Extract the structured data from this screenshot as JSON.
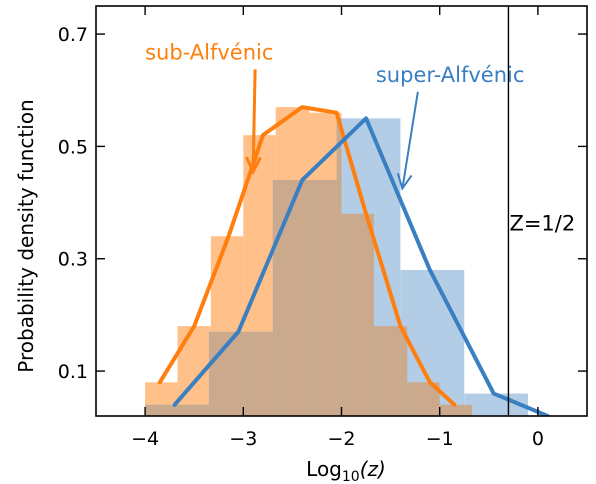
{
  "chart_data": {
    "type": "histogram",
    "xlabel": "Log",
    "xlabel_sub": "10",
    "xlabel_var": "(z)",
    "ylabel": "Probability density function",
    "xlim": [
      -4.5,
      0.5
    ],
    "ylim": [
      0.02,
      0.75
    ],
    "xticks": [
      -4,
      -3,
      -2,
      -1,
      0
    ],
    "xtick_labels": [
      "−4",
      "−3",
      "−2",
      "−1",
      "0"
    ],
    "yticks": [
      0.1,
      0.3,
      0.5,
      0.7
    ],
    "ytick_labels": [
      "0.1",
      "0.3",
      "0.5",
      "0.7"
    ],
    "grid": false,
    "series": [
      {
        "name": "sub-Alfvénic",
        "color": "#ff7f0e",
        "hist_color": "#ffc089",
        "bin_edges": [
          -4.0,
          -3.67,
          -3.33,
          -3.0,
          -2.67,
          -2.33,
          -2.0,
          -1.67,
          -1.33,
          -1.0,
          -0.67
        ],
        "hist_values": [
          0.08,
          0.18,
          0.34,
          0.52,
          0.57,
          0.56,
          0.38,
          0.18,
          0.08,
          0.04
        ],
        "line_x": [
          -3.85,
          -3.5,
          -3.15,
          -2.8,
          -2.4,
          -2.05,
          -1.75,
          -1.4,
          -1.1,
          -0.85
        ],
        "line_y": [
          0.08,
          0.18,
          0.34,
          0.52,
          0.57,
          0.56,
          0.38,
          0.18,
          0.08,
          0.04
        ]
      },
      {
        "name": "super-Alfvénic",
        "color": "#3a7fc1",
        "hist_color": "#b4cde6",
        "bin_edges": [
          -4.0,
          -3.35,
          -2.7,
          -2.05,
          -1.4,
          -0.75,
          -0.1
        ],
        "hist_values": [
          0.04,
          0.17,
          0.44,
          0.55,
          0.28,
          0.06
        ],
        "line_x": [
          -3.7,
          -3.05,
          -2.4,
          -1.75,
          -1.1,
          -0.45,
          0.1
        ],
        "line_y": [
          0.04,
          0.17,
          0.44,
          0.55,
          0.28,
          0.06,
          0.02
        ]
      }
    ],
    "overlap_color": "#cba98c",
    "vline": {
      "x": -0.3,
      "label": "Z=1/2"
    },
    "annotations": [
      {
        "text": "sub-Alfvénic",
        "color": "#ff7f0e",
        "x": -4.0,
        "y": 0.655,
        "arrow_to": [
          -2.9,
          0.455
        ]
      },
      {
        "text": "super-Alfvénic",
        "color": "#3a7fc1",
        "x": -1.65,
        "y": 0.615,
        "arrow_to": [
          -1.38,
          0.425
        ]
      }
    ]
  }
}
